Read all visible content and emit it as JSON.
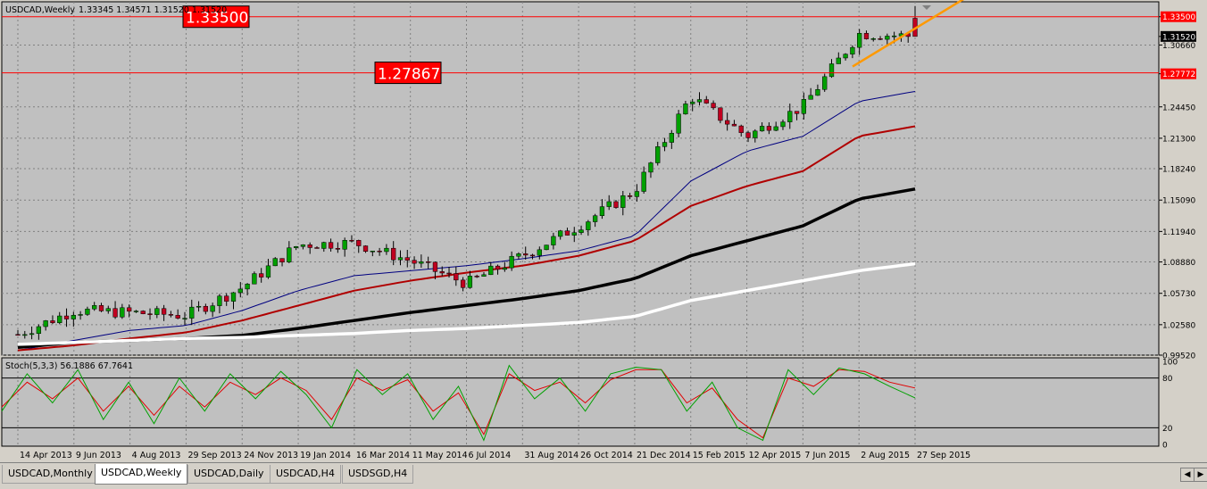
{
  "main_header": {
    "symbol": "USDCAD,Weekly",
    "ohlc": "1.33345 1.34571 1.31520 1.31520"
  },
  "indicator_header": "Stoch(5,3,3) 56.1886 67.7641",
  "level_boxes": [
    "1.33500",
    "1.27867"
  ],
  "price_axis": {
    "labels": [
      "1.33500",
      "1.31520",
      "1.30660",
      "1.27772",
      "1.24450",
      "1.21300",
      "1.18240",
      "1.15090",
      "1.11940",
      "1.08880",
      "1.05730",
      "1.02580",
      "0.99520"
    ],
    "highlighted": [
      "1.33500",
      "1.27772"
    ],
    "current_price": "1.31520"
  },
  "stoch_axis": {
    "labels": [
      "100",
      "80",
      "20",
      "0"
    ]
  },
  "time_axis": {
    "labels": [
      "14 Apr 2013",
      "9 Jun 2013",
      "4 Aug 2013",
      "29 Sep 2013",
      "24 Nov 2013",
      "19 Jan 2014",
      "16 Mar 2014",
      "11 May 2014",
      "6 Jul 2014",
      "31 Aug 2014",
      "26 Oct 2014",
      "21 Dec 2014",
      "15 Feb 2015",
      "12 Apr 2015",
      "7 Jun 2015",
      "2 Aug 2015",
      "27 Sep 2015"
    ]
  },
  "tabs": [
    "USDCAD,Monthly",
    "USDCAD,Weekly",
    "USDCAD,Daily",
    "USDCAD,H4",
    "USDSGD,H4"
  ],
  "active_tab": "USDCAD,Weekly",
  "colors": {
    "background": "#c0c0c0",
    "grid": "#808080",
    "bull": "#00a000",
    "bear": "#c00020",
    "ma_fast": "#000080",
    "ma_mid": "#b00000",
    "ma_slow": "#000000",
    "ma_slowest": "#ffffff",
    "stoch_main": "#00a000",
    "stoch_signal": "#e00000",
    "level_line": "#ff0000",
    "trendline": "#ff9900"
  },
  "chart_data": {
    "type": "candlestick",
    "title": "USDCAD,Weekly",
    "x": [
      "14 Apr 2013",
      "9 Jun 2013",
      "4 Aug 2013",
      "29 Sep 2013",
      "24 Nov 2013",
      "19 Jan 2014",
      "16 Mar 2014",
      "11 May 2014",
      "6 Jul 2014",
      "31 Aug 2014",
      "26 Oct 2014",
      "21 Dec 2014",
      "15 Feb 2015",
      "12 Apr 2015",
      "7 Jun 2015",
      "2 Aug 2015",
      "27 Sep 2015"
    ],
    "close": [
      1.016,
      1.04,
      1.038,
      1.035,
      1.063,
      1.106,
      1.108,
      1.09,
      1.067,
      1.095,
      1.125,
      1.16,
      1.255,
      1.215,
      1.245,
      1.318,
      1.3152
    ],
    "last_bar": {
      "open": 1.33345,
      "high": 1.34571,
      "low": 1.3152,
      "close": 1.3152
    },
    "moving_averages": [
      {
        "color": "#000080",
        "values": [
          1.0,
          1.01,
          1.02,
          1.025,
          1.04,
          1.06,
          1.075,
          1.08,
          1.085,
          1.092,
          1.1,
          1.115,
          1.17,
          1.2,
          1.215,
          1.25,
          1.26
        ]
      },
      {
        "color": "#b00000",
        "values": [
          1.0,
          1.005,
          1.012,
          1.018,
          1.03,
          1.045,
          1.06,
          1.07,
          1.078,
          1.085,
          1.095,
          1.11,
          1.145,
          1.165,
          1.18,
          1.215,
          1.225
        ]
      },
      {
        "color": "#000000",
        "values": [
          1.003,
          1.008,
          1.01,
          1.012,
          1.015,
          1.022,
          1.03,
          1.038,
          1.045,
          1.052,
          1.06,
          1.072,
          1.095,
          1.11,
          1.125,
          1.152,
          1.162
        ]
      },
      {
        "color": "#ffffff",
        "values": [
          1.006,
          1.008,
          1.01,
          1.012,
          1.013,
          1.015,
          1.017,
          1.02,
          1.022,
          1.025,
          1.028,
          1.034,
          1.05,
          1.06,
          1.07,
          1.08,
          1.087
        ]
      }
    ],
    "horizontal_levels": [
      1.335,
      1.2787
    ],
    "trendline": [
      {
        "x": "21 Jun 2015",
        "y": 1.285
      },
      {
        "x": "27 Sep 2015",
        "y": 1.345
      }
    ],
    "price_range": [
      0.9952,
      1.35
    ],
    "stochastic": {
      "name": "Stoch(5,3,3)",
      "main_last": 56.1886,
      "signal_last": 67.7641,
      "levels": [
        20,
        80
      ],
      "range": [
        0,
        100
      ],
      "main": [
        40,
        85,
        50,
        90,
        30,
        75,
        25,
        80,
        40,
        85,
        55,
        88,
        60,
        20,
        90,
        60,
        85,
        30,
        70,
        5,
        95,
        55,
        80,
        40,
        85,
        93,
        90,
        40,
        75,
        20,
        5,
        90,
        60,
        92,
        85,
        70,
        56
      ],
      "signal": [
        45,
        75,
        55,
        80,
        40,
        70,
        35,
        70,
        45,
        75,
        60,
        80,
        65,
        30,
        80,
        65,
        78,
        40,
        62,
        12,
        85,
        65,
        75,
        50,
        78,
        90,
        90,
        50,
        68,
        30,
        8,
        80,
        70,
        90,
        88,
        75,
        68
      ]
    }
  }
}
